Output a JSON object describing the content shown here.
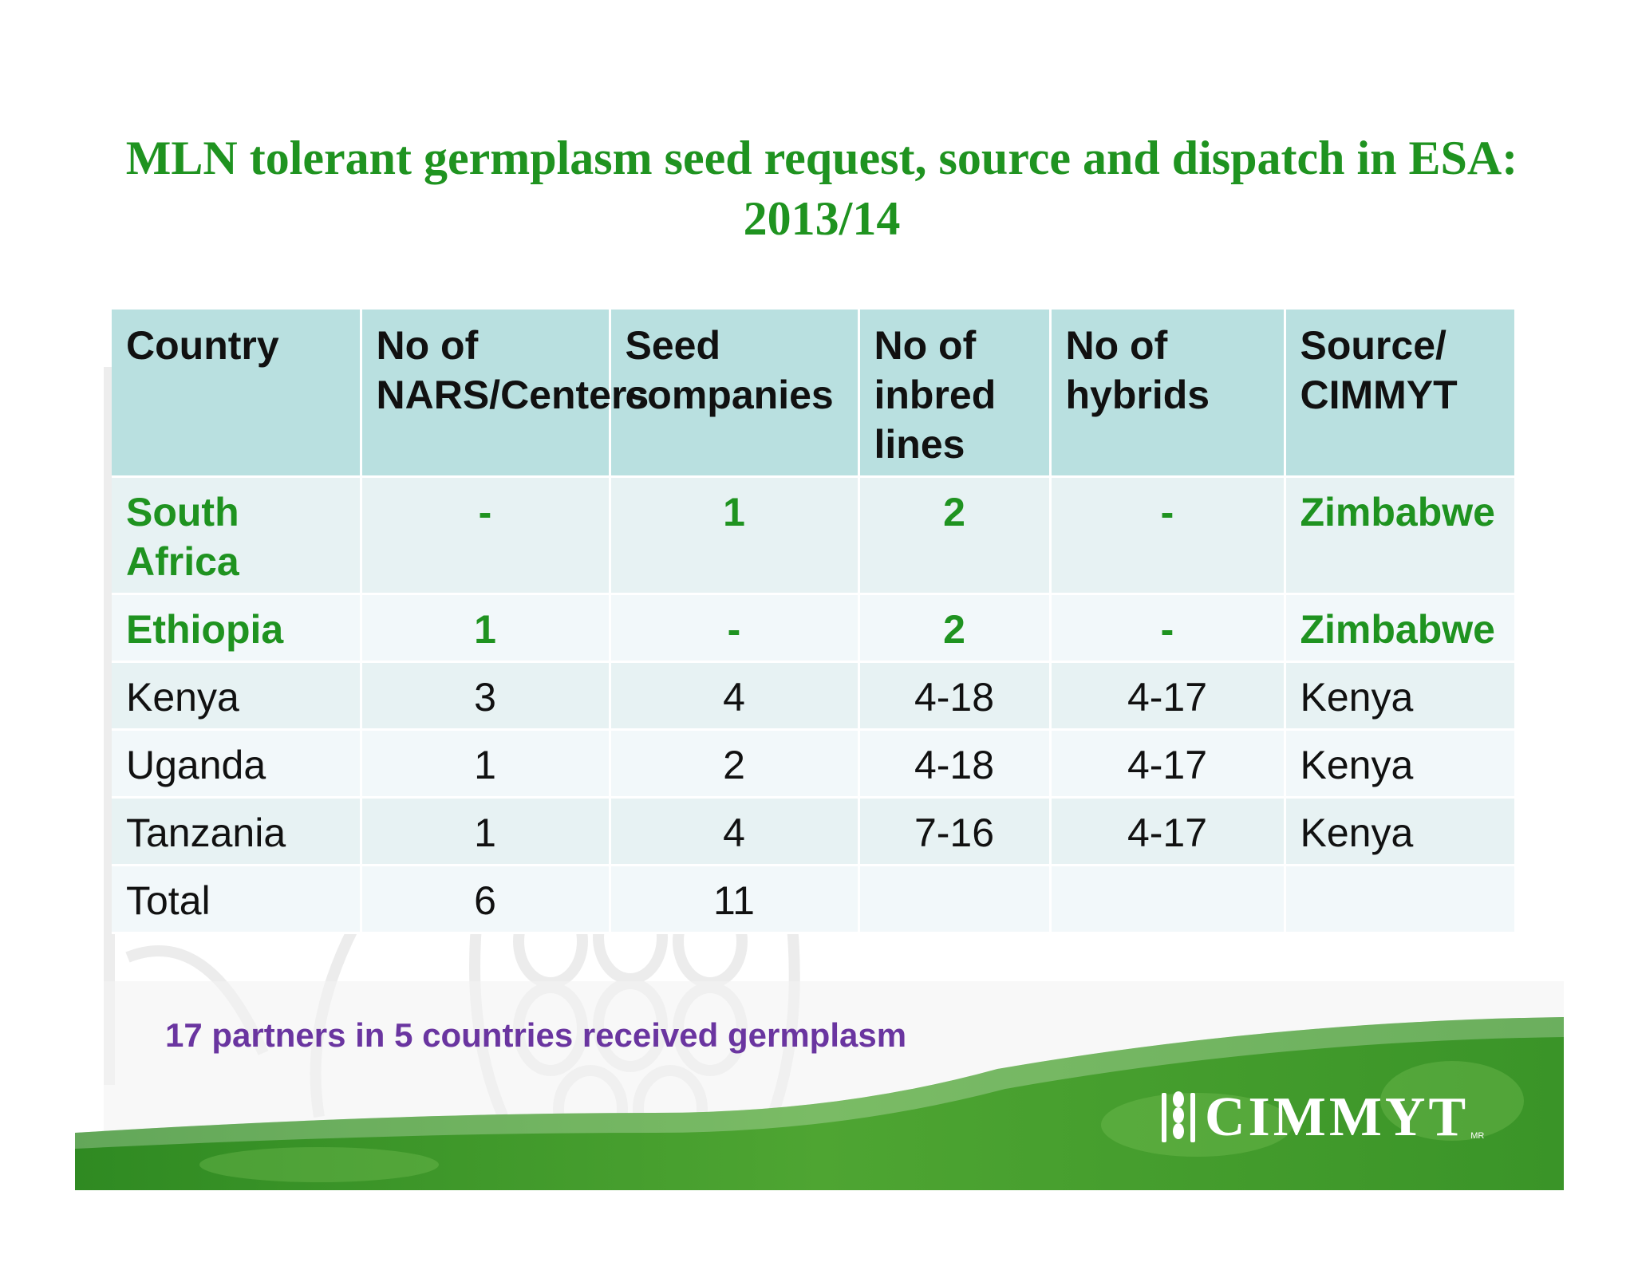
{
  "title": {
    "line1": "MLN tolerant germplasm seed request, source and dispatch in ESA:",
    "line2": "2013/14"
  },
  "table": {
    "headers": [
      "Country",
      "No of NARS/Centers",
      "Seed companies",
      "No of inbred lines",
      "No of hybrids",
      "Source/ CIMMYT"
    ],
    "rows": [
      {
        "country": "South Africa",
        "nars": "-",
        "seed": "1",
        "inbred": "2",
        "hybrids": "-",
        "source": "Zimbabwe"
      },
      {
        "country": "Ethiopia",
        "nars": "1",
        "seed": "-",
        "inbred": "2",
        "hybrids": "-",
        "source": "Zimbabwe"
      },
      {
        "country": "Kenya",
        "nars": "3",
        "seed": "4",
        "inbred": "4-18",
        "hybrids": "4-17",
        "source": "Kenya"
      },
      {
        "country": "Uganda",
        "nars": "1",
        "seed": "2",
        "inbred": "4-18",
        "hybrids": "4-17",
        "source": "Kenya"
      },
      {
        "country": "Tanzania",
        "nars": "1",
        "seed": "4",
        "inbred": "7-16",
        "hybrids": "4-17",
        "source": "Kenya"
      },
      {
        "country": "Total",
        "nars": "6",
        "seed": "11",
        "inbred": "",
        "hybrids": "",
        "source": ""
      }
    ]
  },
  "footnote": "17 partners in 5 countries received germplasm",
  "logo": {
    "text": "CIMMYT",
    "mark": "MR",
    "icon": "wheat-ear-icon"
  },
  "colors": {
    "title_green": "#1f9320",
    "header_bg": "#b9e0e0",
    "footnote_purple": "#6a35a0",
    "wave_green": "#3f9a2c"
  }
}
